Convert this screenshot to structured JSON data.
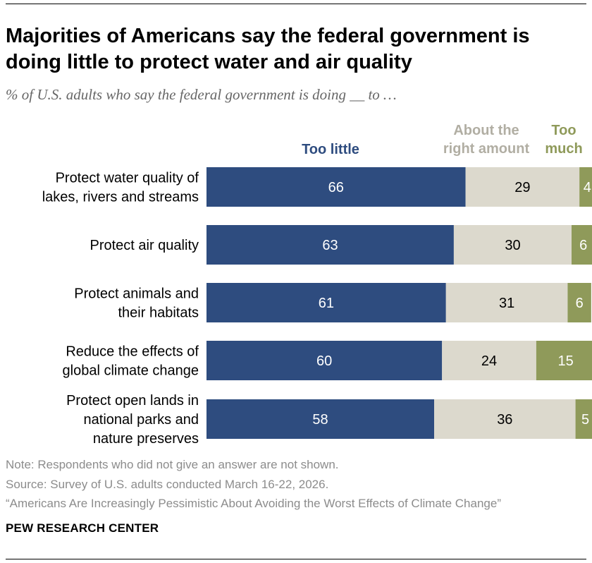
{
  "title": "Majorities of Americans say the federal government is doing little to protect water and air quality",
  "subtitle": "% of U.S. adults who say the federal government is doing __ to …",
  "colors": {
    "too_little": "#2e4c7f",
    "about_right": "#dcd9cd",
    "too_much": "#8f9a5a"
  },
  "chart_data": {
    "type": "bar",
    "orientation": "horizontal",
    "stacked": true,
    "xlim": [
      0,
      100
    ],
    "legend_placement": "top",
    "grid": false,
    "categories": [
      [
        "Protect water quality of",
        "lakes, rivers and streams"
      ],
      [
        "Protect air quality"
      ],
      [
        "Protect animals and",
        "their habitats"
      ],
      [
        "Reduce the effects of",
        "global climate change"
      ],
      [
        "Protect open lands in",
        "national parks and",
        "nature preserves"
      ]
    ],
    "series": [
      {
        "name": [
          "Too little"
        ],
        "color_key": "too_little",
        "values": [
          66,
          63,
          61,
          60,
          58
        ]
      },
      {
        "name": [
          "About the",
          "right amount"
        ],
        "color_key": "about_right",
        "values": [
          29,
          30,
          31,
          24,
          36
        ]
      },
      {
        "name": [
          "Too",
          "much"
        ],
        "color_key": "too_much",
        "values": [
          4,
          6,
          6,
          15,
          5
        ]
      }
    ]
  },
  "notes": {
    "note": "Note: Respondents who did not give an answer are not shown.",
    "source": "Source: Survey of U.S. adults conducted March 16-22, 2026.",
    "report": "“Americans Are Increasingly Pessimistic About Avoiding the Worst Effects of Climate Change”"
  },
  "brand": "PEW RESEARCH CENTER"
}
